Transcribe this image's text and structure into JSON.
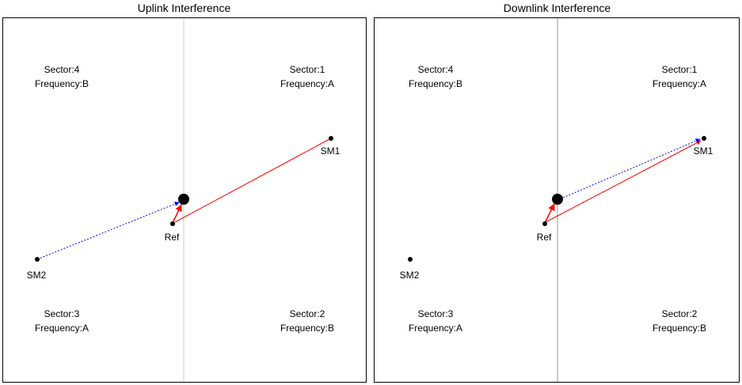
{
  "panels": [
    {
      "id": "uplink",
      "title": "Uplink Interference",
      "sectors": [
        {
          "sector": "Sector:4",
          "frequency": "Frequency:B"
        },
        {
          "sector": "Sector:1",
          "frequency": "Frequency:A"
        },
        {
          "sector": "Sector:3",
          "frequency": "Frequency:A"
        },
        {
          "sector": "Sector:2",
          "frequency": "Frequency:B"
        }
      ],
      "nodes": [
        {
          "label": "SM1"
        },
        {
          "label": "SM2"
        },
        {
          "label": "Ref"
        }
      ],
      "arrows": [
        {
          "from": "SM1",
          "to": "Ref",
          "color": "#ff0000",
          "style": "solid"
        },
        {
          "from": "Ref",
          "to": "BS",
          "color": "#ff0000",
          "style": "solid"
        },
        {
          "from": "SM2",
          "to": "BS",
          "color": "#0000ff",
          "style": "dotted"
        }
      ]
    },
    {
      "id": "downlink",
      "title": "Downlink Interference",
      "sectors": [
        {
          "sector": "Sector:4",
          "frequency": "Frequency:B"
        },
        {
          "sector": "Sector:1",
          "frequency": "Frequency:A"
        },
        {
          "sector": "Sector:3",
          "frequency": "Frequency:A"
        },
        {
          "sector": "Sector:2",
          "frequency": "Frequency:B"
        }
      ],
      "nodes": [
        {
          "label": "SM1"
        },
        {
          "label": "SM2"
        },
        {
          "label": "Ref"
        }
      ],
      "arrows": [
        {
          "from": "Ref",
          "to": "SM1",
          "color": "#ff0000",
          "style": "solid"
        },
        {
          "from": "Ref",
          "to": "BS",
          "color": "#ff0000",
          "style": "solid"
        },
        {
          "from": "BS",
          "to": "SM1",
          "color": "#0000ff",
          "style": "dotted"
        }
      ]
    }
  ]
}
